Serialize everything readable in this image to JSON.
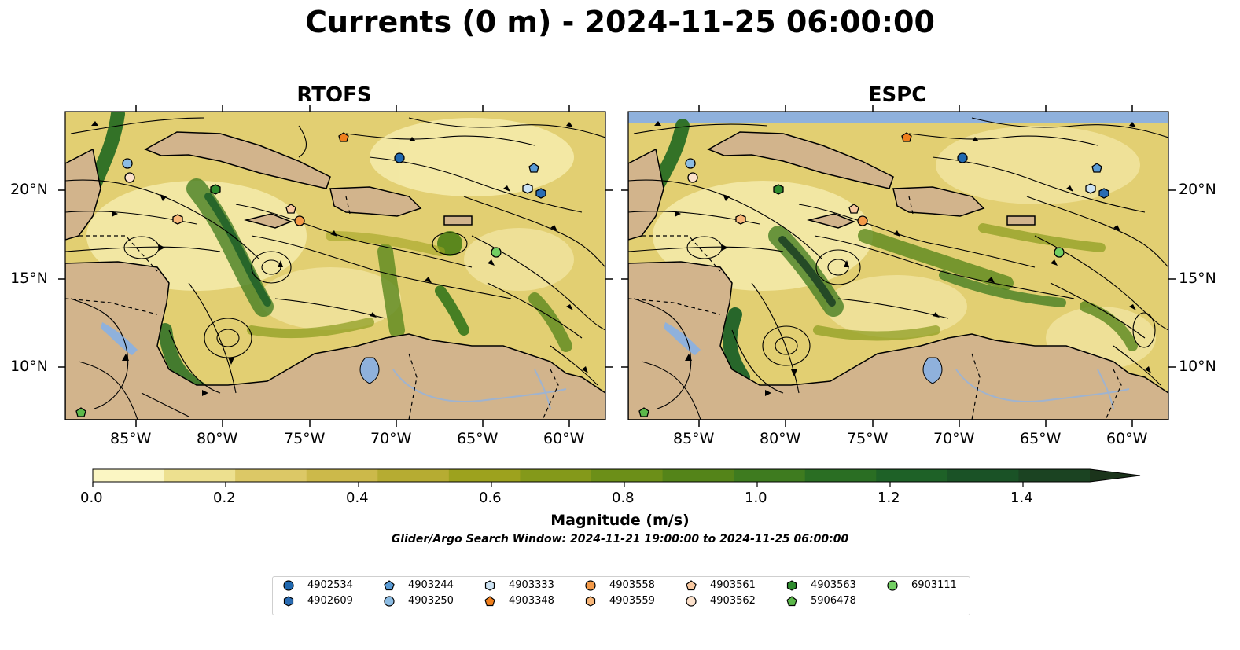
{
  "title": "Currents (0 m) - 2024-11-25 06:00:00",
  "panels": [
    {
      "name": "RTOFS"
    },
    {
      "name": "ESPC"
    }
  ],
  "axes": {
    "lon_ticks": [
      "85°W",
      "80°W",
      "75°W",
      "70°W",
      "65°W",
      "60°W"
    ],
    "lat_ticks": [
      "20°N",
      "15°N",
      "10°N"
    ]
  },
  "colorbar": {
    "label": "Magnitude (m/s)",
    "ticks": [
      "0.0",
      "0.2",
      "0.4",
      "0.6",
      "0.8",
      "1.0",
      "1.2",
      "1.4"
    ],
    "range": [
      0.0,
      1.5
    ],
    "extend": "max",
    "colors": [
      "#fbf6c3",
      "#ede08f",
      "#dcc866",
      "#ccb94a",
      "#b6ac32",
      "#9da21e",
      "#84991a",
      "#6c8f18",
      "#548419",
      "#3e7b1f",
      "#2a6e23",
      "#1e6127",
      "#1a5226",
      "#1b4322",
      "#1b341b"
    ]
  },
  "search_window": "Glider/Argo Search Window: 2024-11-21 19:00:00 to 2024-11-25 06:00:00",
  "colors": {
    "land": "#d2b48c",
    "water_inland": "#8fb1dc",
    "rivers": "#9fb3cf",
    "no_data": "#8fb1dc"
  },
  "legend": [
    {
      "id": "4902534",
      "marker": "circle",
      "color": "#1f68b0"
    },
    {
      "id": "4902609",
      "marker": "hexagon",
      "color": "#2a6cb3"
    },
    {
      "id": "4903244",
      "marker": "pentagon",
      "color": "#5a9bd5"
    },
    {
      "id": "4903250",
      "marker": "circle",
      "color": "#8cbce3"
    },
    {
      "id": "4903333",
      "marker": "hexagon",
      "color": "#cde3f3"
    },
    {
      "id": "4903348",
      "marker": "pentagon",
      "color": "#f07f1d"
    },
    {
      "id": "4903558",
      "marker": "circle",
      "color": "#f49a48"
    },
    {
      "id": "4903559",
      "marker": "hexagon",
      "color": "#f8b77a"
    },
    {
      "id": "4903561",
      "marker": "pentagon",
      "color": "#f9c9a1"
    },
    {
      "id": "4903562",
      "marker": "circle",
      "color": "#fde2cc"
    },
    {
      "id": "4903563",
      "marker": "hexagon",
      "color": "#2e8b2e"
    },
    {
      "id": "5906478",
      "marker": "pentagon",
      "color": "#5cb84a"
    },
    {
      "id": "6903111",
      "marker": "circle",
      "color": "#72cf62"
    }
  ],
  "platform_positions": [
    {
      "id": "4902534",
      "lon": -69.9,
      "lat": 21.8
    },
    {
      "id": "4902609",
      "lon": -61.6,
      "lat": 19.8
    },
    {
      "id": "4903244",
      "lon": -62.1,
      "lat": 21.3
    },
    {
      "id": "4903250",
      "lon": -85.5,
      "lat": 21.5
    },
    {
      "id": "4903333",
      "lon": -62.4,
      "lat": 20.1
    },
    {
      "id": "4903348",
      "lon": -73.0,
      "lat": 22.8
    },
    {
      "id": "4903558",
      "lon": -75.4,
      "lat": 18.2
    },
    {
      "id": "4903559",
      "lon": -82.6,
      "lat": 18.3
    },
    {
      "id": "4903561",
      "lon": -76.0,
      "lat": 18.9
    },
    {
      "id": "4903562",
      "lon": -85.3,
      "lat": 20.7
    },
    {
      "id": "4903563",
      "lon": -80.4,
      "lat": 20.0
    },
    {
      "id": "5906478",
      "lon": -88.1,
      "lat": 7.5
    },
    {
      "id": "6903111",
      "lon": -64.2,
      "lat": 16.5
    }
  ]
}
